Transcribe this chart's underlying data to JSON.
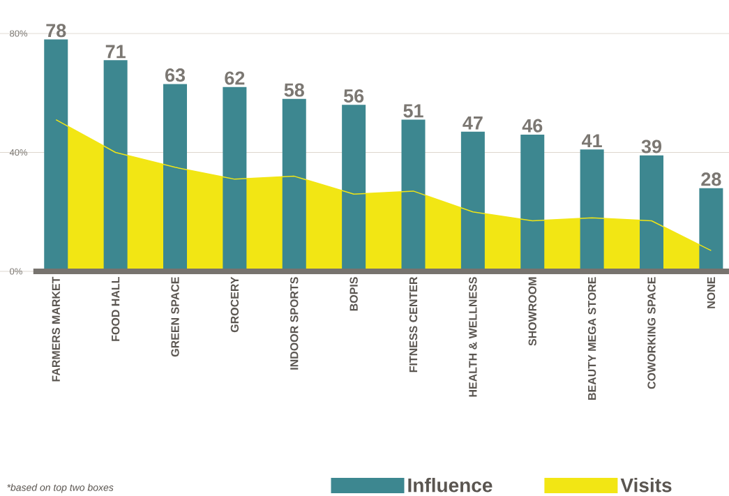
{
  "chart_data": {
    "type": "bar",
    "categories": [
      "FARMERS MARKET",
      "FOOD HALL",
      "GREEN SPACE",
      "GROCERY",
      "INDOOR SPORTS",
      "BOPIS",
      "FITNESS CENTER",
      "HEALTH & WELLNESS",
      "SHOWROOM",
      "BEAUTY MEGA STORE",
      "COWORKING SPACE",
      "NONE"
    ],
    "series": [
      {
        "name": "Influence",
        "color": "#3d8790",
        "values": [
          78,
          71,
          63,
          62,
          58,
          56,
          51,
          47,
          46,
          41,
          39,
          28
        ],
        "value_labels": [
          "78",
          "71",
          "63",
          "62",
          "58",
          "56",
          "51",
          "47",
          "46",
          "41",
          "39",
          "28"
        ]
      },
      {
        "name": "Visits",
        "type": "area",
        "color": "#f2e614",
        "values": [
          51,
          40,
          35,
          31,
          32,
          26,
          27,
          20,
          17,
          18,
          17,
          7
        ]
      }
    ],
    "ylim": [
      0,
      80
    ],
    "yticks": [
      {
        "value": 0,
        "label": "0%"
      },
      {
        "value": 40,
        "label": "40%"
      },
      {
        "value": 80,
        "label": "80%"
      }
    ],
    "grid": "y",
    "legend": "bottom",
    "annotations": [
      "*based on top two boxes"
    ]
  }
}
